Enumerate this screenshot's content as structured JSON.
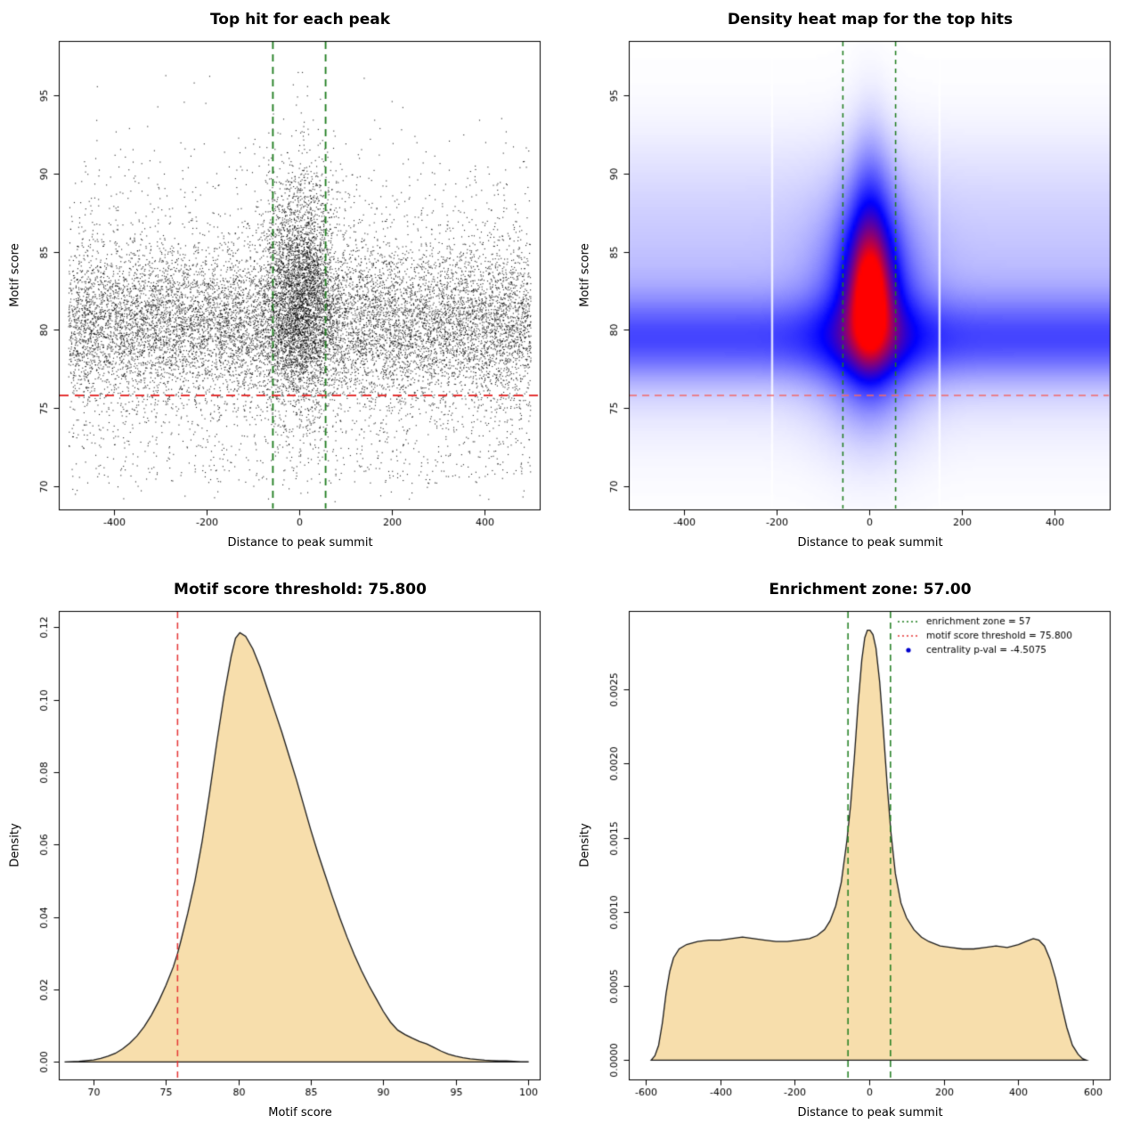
{
  "page_bg": "#ffffff",
  "chart_data": [
    {
      "type": "scatter",
      "title": "Top hit for each peak",
      "xlabel": "Distance to peak summit",
      "ylabel": "Motif score",
      "xlim": [
        -520,
        520
      ],
      "ylim": [
        68.5,
        98.5
      ],
      "xticks": {
        "values": [
          -400,
          -200,
          0,
          200,
          400
        ],
        "labels": [
          "-400",
          "-200",
          "0",
          "200",
          "400"
        ]
      },
      "yticks": {
        "values": [
          70,
          75,
          80,
          85,
          90,
          95
        ],
        "labels": [
          "70",
          "75",
          "80",
          "85",
          "90",
          "95"
        ]
      },
      "point_color": "#000000",
      "hline": {
        "y": 75.8,
        "color": "#e53535",
        "dash": [
          10,
          7
        ],
        "width": 1.8
      },
      "vlines": {
        "x": [
          -57,
          57
        ],
        "color": "#1e7d1e",
        "dash": [
          8,
          6
        ],
        "width": 1.8
      },
      "scatter_model": {
        "seed": 20240613,
        "point_size": 1.1,
        "alpha": 0.85,
        "components": [
          {
            "n": 11500,
            "x": {
              "dist": "uniform",
              "min": -500,
              "max": 500
            },
            "y": {
              "dist": "normal",
              "mean": 80.3,
              "sd": 2.5,
              "min": 69,
              "max": 97
            }
          },
          {
            "n": 3600,
            "x": {
              "dist": "normal",
              "mean": 2,
              "sd": 38,
              "min": -125,
              "max": 125
            },
            "y": {
              "dist": "normal",
              "mean": 82.5,
              "sd": 3.8,
              "min": 70,
              "max": 98.2
            }
          },
          {
            "n": 800,
            "x": {
              "dist": "uniform",
              "min": -500,
              "max": 500
            },
            "y": {
              "dist": "normal",
              "mean": 86.5,
              "sd": 3.2,
              "min": 76,
              "max": 97.5
            }
          },
          {
            "n": 650,
            "x": {
              "dist": "uniform",
              "min": -500,
              "max": 500
            },
            "y": {
              "dist": "uniform",
              "min": 70.2,
              "max": 76.5
            }
          },
          {
            "n": 70,
            "x": {
              "dist": "uniform",
              "min": -500,
              "max": 500
            },
            "y": {
              "dist": "uniform",
              "min": 69,
              "max": 72.5
            }
          }
        ]
      }
    },
    {
      "type": "heatmap",
      "title": "Density heat map for the top hits",
      "xlabel": "Distance to peak summit",
      "ylabel": "Motif score",
      "xlim": [
        -520,
        520
      ],
      "ylim": [
        68.5,
        98.5
      ],
      "xticks": {
        "values": [
          -400,
          -200,
          0,
          200,
          400
        ],
        "labels": [
          "-400",
          "-200",
          "0",
          "200",
          "400"
        ]
      },
      "yticks": {
        "values": [
          70,
          75,
          80,
          85,
          90,
          95
        ],
        "labels": [
          "70",
          "75",
          "80",
          "85",
          "90",
          "95"
        ]
      },
      "hline": {
        "y": 75.8,
        "color": "#f26a6a",
        "dash": [
          8,
          6
        ],
        "width": 1.5
      },
      "vlines": {
        "x": [
          -57,
          57
        ],
        "color": "#1e7d1e",
        "dash": [
          5,
          5
        ],
        "width": 1.5
      },
      "heat_model": {
        "grid": [
          170,
          150
        ],
        "scale": 3.2,
        "ramp": [
          "#ffffff",
          "#0000ff",
          "#ff0000"
        ],
        "white_gaps": [
          -210,
          152
        ],
        "components": [
          {
            "kind": "band",
            "amp": 0.78,
            "y0": 79.4,
            "sy": 1.8
          },
          {
            "kind": "band",
            "amp": 0.42,
            "y0": 81.5,
            "sy": 4.8
          },
          {
            "kind": "band",
            "amp": 0.12,
            "y0": 89.0,
            "sy": 3.2
          },
          {
            "kind": "blob",
            "amp": 0.95,
            "x0": 0,
            "sx": 78,
            "y0": 81.0,
            "sy": 4.6
          },
          {
            "kind": "blob",
            "amp": 1.05,
            "x0": 2,
            "sx": 44,
            "y0": 83.0,
            "sy": 4.2
          },
          {
            "kind": "blob",
            "amp": 1.35,
            "x0": 2,
            "sx": 27,
            "y0": 82.0,
            "sy": 2.5
          },
          {
            "kind": "blob",
            "amp": 0.5,
            "x0": 2,
            "sx": 30,
            "y0": 87.5,
            "sy": 4.2
          }
        ]
      }
    },
    {
      "type": "density",
      "title": "Motif score threshold: 75.800",
      "xlabel": "Motif score",
      "ylabel": "Density",
      "xlim": [
        67.6,
        100.8
      ],
      "ylim": [
        -0.0048,
        0.1245
      ],
      "xticks": {
        "values": [
          70,
          75,
          80,
          85,
          90,
          95,
          100
        ],
        "labels": [
          "70",
          "75",
          "80",
          "85",
          "90",
          "95",
          "100"
        ]
      },
      "yticks": {
        "values": [
          0,
          0.02,
          0.04,
          0.06,
          0.08,
          0.1,
          0.12
        ],
        "labels": [
          "0.00",
          "0.02",
          "0.04",
          "0.06",
          "0.08",
          "0.10",
          "0.12"
        ]
      },
      "fill": "#f7deac",
      "line_color": "#1a1a1a",
      "vlines": {
        "x": [
          75.8
        ],
        "color": "#e53535",
        "dash": [
          7,
          5
        ],
        "width": 1.5
      },
      "curve": [
        [
          68,
          0.0
        ],
        [
          69,
          0.0002
        ],
        [
          70,
          0.0006
        ],
        [
          70.5,
          0.001
        ],
        [
          71,
          0.0016
        ],
        [
          71.5,
          0.0024
        ],
        [
          72,
          0.0036
        ],
        [
          72.5,
          0.0052
        ],
        [
          73,
          0.0072
        ],
        [
          73.5,
          0.0098
        ],
        [
          74,
          0.013
        ],
        [
          74.5,
          0.0168
        ],
        [
          75,
          0.0212
        ],
        [
          75.5,
          0.0262
        ],
        [
          75.8,
          0.03
        ],
        [
          76,
          0.033
        ],
        [
          76.5,
          0.041
        ],
        [
          77,
          0.05
        ],
        [
          77.5,
          0.061
        ],
        [
          78,
          0.074
        ],
        [
          78.5,
          0.088
        ],
        [
          79,
          0.101
        ],
        [
          79.5,
          0.112
        ],
        [
          79.8,
          0.117
        ],
        [
          80.1,
          0.1185
        ],
        [
          80.5,
          0.1175
        ],
        [
          81,
          0.114
        ],
        [
          81.5,
          0.109
        ],
        [
          82,
          0.103
        ],
        [
          82.5,
          0.097
        ],
        [
          83,
          0.091
        ],
        [
          83.5,
          0.0845
        ],
        [
          84,
          0.078
        ],
        [
          84.5,
          0.071
        ],
        [
          85,
          0.064
        ],
        [
          85.5,
          0.0575
        ],
        [
          86,
          0.0515
        ],
        [
          86.5,
          0.0455
        ],
        [
          87,
          0.0398
        ],
        [
          87.5,
          0.0345
        ],
        [
          88,
          0.0296
        ],
        [
          88.5,
          0.0252
        ],
        [
          89,
          0.0212
        ],
        [
          89.5,
          0.0176
        ],
        [
          90,
          0.014
        ],
        [
          90.5,
          0.011
        ],
        [
          91,
          0.0088
        ],
        [
          91.5,
          0.0076
        ],
        [
          92,
          0.0066
        ],
        [
          92.5,
          0.0057
        ],
        [
          93,
          0.005
        ],
        [
          93.5,
          0.004
        ],
        [
          94,
          0.003
        ],
        [
          94.5,
          0.0022
        ],
        [
          95,
          0.0016
        ],
        [
          95.5,
          0.0012
        ],
        [
          96,
          0.0009
        ],
        [
          96.5,
          0.0007
        ],
        [
          97,
          0.0005
        ],
        [
          97.5,
          0.0004
        ],
        [
          98,
          0.0003
        ],
        [
          98.5,
          0.0003
        ],
        [
          99,
          0.0002
        ],
        [
          99.5,
          0.0001
        ],
        [
          100,
          0.0001
        ]
      ]
    },
    {
      "type": "density",
      "title": "Enrichment zone: 57.00",
      "xlabel": "Distance to peak summit",
      "ylabel": "Density",
      "xlim": [
        -645,
        645
      ],
      "ylim": [
        -0.00013,
        0.00303
      ],
      "xticks": {
        "values": [
          -600,
          -400,
          -200,
          0,
          200,
          400,
          600
        ],
        "labels": [
          "-600",
          "-400",
          "-200",
          "0",
          "200",
          "400",
          "600"
        ]
      },
      "yticks": {
        "values": [
          0,
          0.0005,
          0.001,
          0.0015,
          0.002,
          0.0025
        ],
        "labels": [
          "0.0000",
          "0.0005",
          "0.0010",
          "0.0015",
          "0.0020",
          "0.0025"
        ]
      },
      "fill": "#f7deac",
      "line_color": "#1a1a1a",
      "vlines": {
        "x": [
          -57,
          57
        ],
        "color": "#1e7d1e",
        "dash": [
          7,
          5
        ],
        "width": 1.5
      },
      "curve": [
        [
          -585,
          0
        ],
        [
          -575,
          3e-05
        ],
        [
          -565,
          0.0001
        ],
        [
          -555,
          0.00025
        ],
        [
          -545,
          0.00045
        ],
        [
          -535,
          0.0006
        ],
        [
          -525,
          0.00069
        ],
        [
          -510,
          0.00075
        ],
        [
          -490,
          0.00078
        ],
        [
          -460,
          0.0008
        ],
        [
          -430,
          0.00081
        ],
        [
          -400,
          0.00081
        ],
        [
          -370,
          0.00082
        ],
        [
          -340,
          0.00083
        ],
        [
          -310,
          0.00082
        ],
        [
          -280,
          0.00081
        ],
        [
          -250,
          0.0008
        ],
        [
          -220,
          0.0008
        ],
        [
          -190,
          0.00081
        ],
        [
          -160,
          0.00082
        ],
        [
          -140,
          0.00084
        ],
        [
          -120,
          0.00088
        ],
        [
          -105,
          0.00094
        ],
        [
          -90,
          0.00104
        ],
        [
          -75,
          0.0012
        ],
        [
          -60,
          0.00148
        ],
        [
          -50,
          0.00172
        ],
        [
          -40,
          0.00204
        ],
        [
          -30,
          0.0024
        ],
        [
          -20,
          0.0027
        ],
        [
          -12,
          0.00285
        ],
        [
          -5,
          0.0029
        ],
        [
          2,
          0.0029
        ],
        [
          10,
          0.00287
        ],
        [
          18,
          0.00278
        ],
        [
          28,
          0.00255
        ],
        [
          38,
          0.00222
        ],
        [
          48,
          0.00186
        ],
        [
          58,
          0.00154
        ],
        [
          70,
          0.00126
        ],
        [
          85,
          0.00106
        ],
        [
          100,
          0.00096
        ],
        [
          120,
          0.00088
        ],
        [
          140,
          0.00083
        ],
        [
          160,
          0.0008
        ],
        [
          190,
          0.00077
        ],
        [
          220,
          0.00076
        ],
        [
          250,
          0.00075
        ],
        [
          280,
          0.00075
        ],
        [
          310,
          0.00076
        ],
        [
          340,
          0.00077
        ],
        [
          370,
          0.00076
        ],
        [
          400,
          0.00078
        ],
        [
          420,
          0.0008
        ],
        [
          440,
          0.00082
        ],
        [
          455,
          0.00081
        ],
        [
          470,
          0.00077
        ],
        [
          485,
          0.00068
        ],
        [
          500,
          0.00055
        ],
        [
          515,
          0.00038
        ],
        [
          530,
          0.00022
        ],
        [
          545,
          0.0001
        ],
        [
          560,
          4e-05
        ],
        [
          572,
          1e-05
        ],
        [
          582,
          0
        ]
      ],
      "legend": {
        "entries": [
          {
            "label": "enrichment zone = 57",
            "color": "#1e7d1e",
            "symbol": "dotted-line"
          },
          {
            "label": "motif score threshold = 75.800",
            "color": "#e53535",
            "symbol": "dotted-line"
          },
          {
            "label": "centrality p-val = -4.5075",
            "color": "#0000cd",
            "symbol": "point"
          }
        ]
      }
    }
  ]
}
